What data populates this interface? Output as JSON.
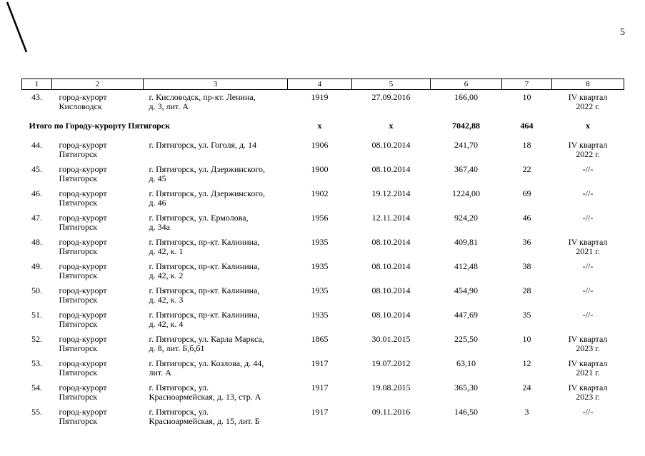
{
  "page": {
    "number": "5"
  },
  "colors": {
    "text": "#000000",
    "background": "#ffffff",
    "border": "#000000"
  },
  "table": {
    "headers": [
      "1",
      "2",
      "3",
      "4",
      "5",
      "6",
      "7",
      "8"
    ],
    "rows": [
      {
        "type": "data",
        "num": "43.",
        "city": [
          "город-курорт",
          "Кисловодск"
        ],
        "address": [
          "г. Кисловодск, пр-кт. Ленина,",
          "д. 3, лит. А"
        ],
        "year": "1919",
        "date": "27.09.2016",
        "area": "166,00",
        "count": "10",
        "quarter": [
          "IV квартал",
          "2022 г."
        ]
      },
      {
        "type": "summary",
        "label": "Итого по Городу-курорту Пятигорск",
        "year": "х",
        "date": "х",
        "area": "7042,88",
        "count": "464",
        "quarter": [
          "х"
        ]
      },
      {
        "type": "data",
        "num": "44.",
        "city": [
          "город-курорт",
          "Пятигорск"
        ],
        "address": [
          "г. Пятигорск, ул. Гоголя, д. 14"
        ],
        "year": "1906",
        "date": "08.10.2014",
        "area": "241,70",
        "count": "18",
        "quarter": [
          "IV квартал",
          "2022 г."
        ]
      },
      {
        "type": "data",
        "num": "45.",
        "city": [
          "город-курорт",
          "Пятигорск"
        ],
        "address": [
          "г. Пятигорск, ул. Дзержинского,",
          "д. 45"
        ],
        "year": "1900",
        "date": "08.10.2014",
        "area": "367,40",
        "count": "22",
        "quarter": [
          "-//-"
        ]
      },
      {
        "type": "data",
        "num": "46.",
        "city": [
          "город-курорт",
          "Пятигорск"
        ],
        "address": [
          "г. Пятигорск, ул. Дзержинского,",
          "д. 46"
        ],
        "year": "1902",
        "date": "19.12.2014",
        "area": "1224,00",
        "count": "69",
        "quarter": [
          "-//-"
        ]
      },
      {
        "type": "data",
        "num": "47.",
        "city": [
          "город-курорт",
          "Пятигорск"
        ],
        "address": [
          "г. Пятигорск, ул. Ермолова,",
          "д. 34а"
        ],
        "year": "1956",
        "date": "12.11.2014",
        "area": "924,20",
        "count": "46",
        "quarter": [
          "-//-"
        ]
      },
      {
        "type": "data",
        "num": "48.",
        "city": [
          "город-курорт",
          "Пятигорск"
        ],
        "address": [
          "г. Пятигорск, пр-кт. Калинина,",
          "д. 42, к. 1"
        ],
        "year": "1935",
        "date": "08.10.2014",
        "area": "409,81",
        "count": "36",
        "quarter": [
          "IV квартал",
          "2021 г."
        ]
      },
      {
        "type": "data",
        "num": "49.",
        "city": [
          "город-курорт",
          "Пятигорск"
        ],
        "address": [
          "г. Пятигорск, пр-кт. Калинина,",
          "д. 42, к. 2"
        ],
        "year": "1935",
        "date": "08.10.2014",
        "area": "412,48",
        "count": "38",
        "quarter": [
          "-//-"
        ]
      },
      {
        "type": "data",
        "num": "50.",
        "city": [
          "город-курорт",
          "Пятигорск"
        ],
        "address": [
          "г. Пятигорск, пр-кт. Калинина,",
          "д. 42, к. 3"
        ],
        "year": "1935",
        "date": "08.10.2014",
        "area": "454,90",
        "count": "28",
        "quarter": [
          "-//-"
        ]
      },
      {
        "type": "data",
        "num": "51.",
        "city": [
          "город-курорт",
          "Пятигорск"
        ],
        "address": [
          "г. Пятигорск, пр-кт. Калинина,",
          "д. 42, к. 4"
        ],
        "year": "1935",
        "date": "08.10.2014",
        "area": "447,69",
        "count": "35",
        "quarter": [
          "-//-"
        ]
      },
      {
        "type": "data",
        "num": "52.",
        "city": [
          "город-курорт",
          "Пятигорск"
        ],
        "address": [
          "г. Пятигорск, ул. Карла Маркса,",
          "д. 8, лит. Б,б,б1"
        ],
        "year": "1865",
        "date": "30.01.2015",
        "area": "225,50",
        "count": "10",
        "quarter": [
          "IV квартал",
          "2023 г."
        ]
      },
      {
        "type": "data",
        "num": "53.",
        "city": [
          "город-курорт",
          "Пятигорск"
        ],
        "address": [
          "г. Пятигорск, ул. Козлова, д. 44,",
          "лит. А"
        ],
        "year": "1917",
        "date": "19.07.2012",
        "area": "63,10",
        "count": "12",
        "quarter": [
          "IV квартал",
          "2021 г."
        ]
      },
      {
        "type": "data",
        "num": "54.",
        "city": [
          "город-курорт",
          "Пятигорск"
        ],
        "address": [
          "г. Пятигорск, ул.",
          "Красноармейская, д. 13, стр. А"
        ],
        "year": "1917",
        "date": "19.08.2015",
        "area": "365,30",
        "count": "24",
        "quarter": [
          "IV квартал",
          "2023 г."
        ]
      },
      {
        "type": "data",
        "num": "55.",
        "city": [
          "город-курорт",
          "Пятигорск"
        ],
        "address": [
          "г. Пятигорск, ул.",
          "Красноармейская, д. 15, лит. Б"
        ],
        "year": "1917",
        "date": "09.11.2016",
        "area": "146,50",
        "count": "3",
        "quarter": [
          "-//-"
        ]
      }
    ]
  }
}
